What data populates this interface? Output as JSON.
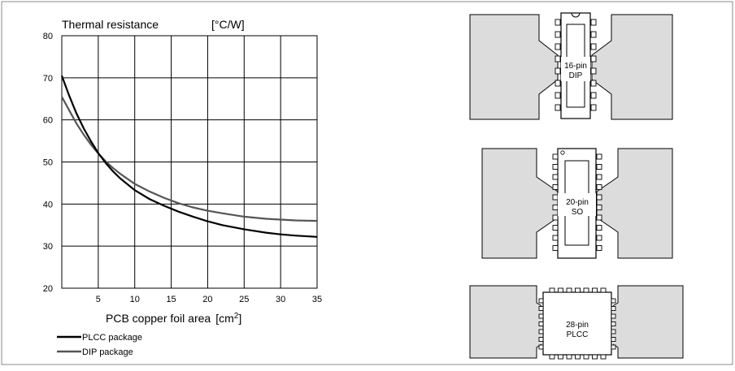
{
  "chart_data": {
    "type": "line",
    "title": "Thermal resistance",
    "title_unit": "[°C/W]",
    "xlabel": "PCB copper foil area",
    "xlabel_unit_prefix": "[cm",
    "xlabel_unit_sup": "2",
    "xlabel_unit_suffix": "]",
    "xlim": [
      0,
      35
    ],
    "ylim": [
      20,
      80
    ],
    "x_ticks": [
      5,
      10,
      15,
      20,
      25,
      30,
      35
    ],
    "y_ticks": [
      20,
      30,
      40,
      50,
      60,
      70,
      80
    ],
    "grid": true,
    "legend_placement": "bottom-left",
    "series": [
      {
        "name": "PLCC package",
        "color": "#000000",
        "x": [
          0,
          1,
          2,
          3,
          4,
          5,
          6,
          7,
          8,
          10,
          12,
          14,
          16,
          18,
          20,
          22,
          25,
          28,
          30,
          32,
          35
        ],
        "y": [
          70.5,
          65.8,
          61.6,
          58,
          54.9,
          52.1,
          49.8,
          47.8,
          46.1,
          43.3,
          41.2,
          39.6,
          38.2,
          37.0,
          35.9,
          35.0,
          34.0,
          33.2,
          32.8,
          32.5,
          32.2
        ]
      },
      {
        "name": "DIP package",
        "color": "#555555",
        "x": [
          0,
          1,
          2,
          3,
          4,
          5,
          6,
          7,
          8,
          10,
          12,
          14,
          16,
          18,
          20,
          22,
          25,
          28,
          30,
          32,
          35
        ],
        "y": [
          65.5,
          62.3,
          59.2,
          56.5,
          54.1,
          52.0,
          50.2,
          48.6,
          47.2,
          44.8,
          43.0,
          41.5,
          40.2,
          39.2,
          38.4,
          37.8,
          37.0,
          36.5,
          36.3,
          36.1,
          36.0
        ]
      }
    ]
  },
  "diagrams": [
    {
      "label_line1": "16-pin",
      "label_line2": "DIP",
      "package": "DIP"
    },
    {
      "label_line1": "20-pin",
      "label_line2": "SO",
      "package": "SO"
    },
    {
      "label_line1": "28-pin",
      "label_line2": "PLCC",
      "package": "PLCC"
    }
  ],
  "colors": {
    "copper_area": "#dcdcdc",
    "outline": "#000000",
    "frame": "#888888"
  }
}
